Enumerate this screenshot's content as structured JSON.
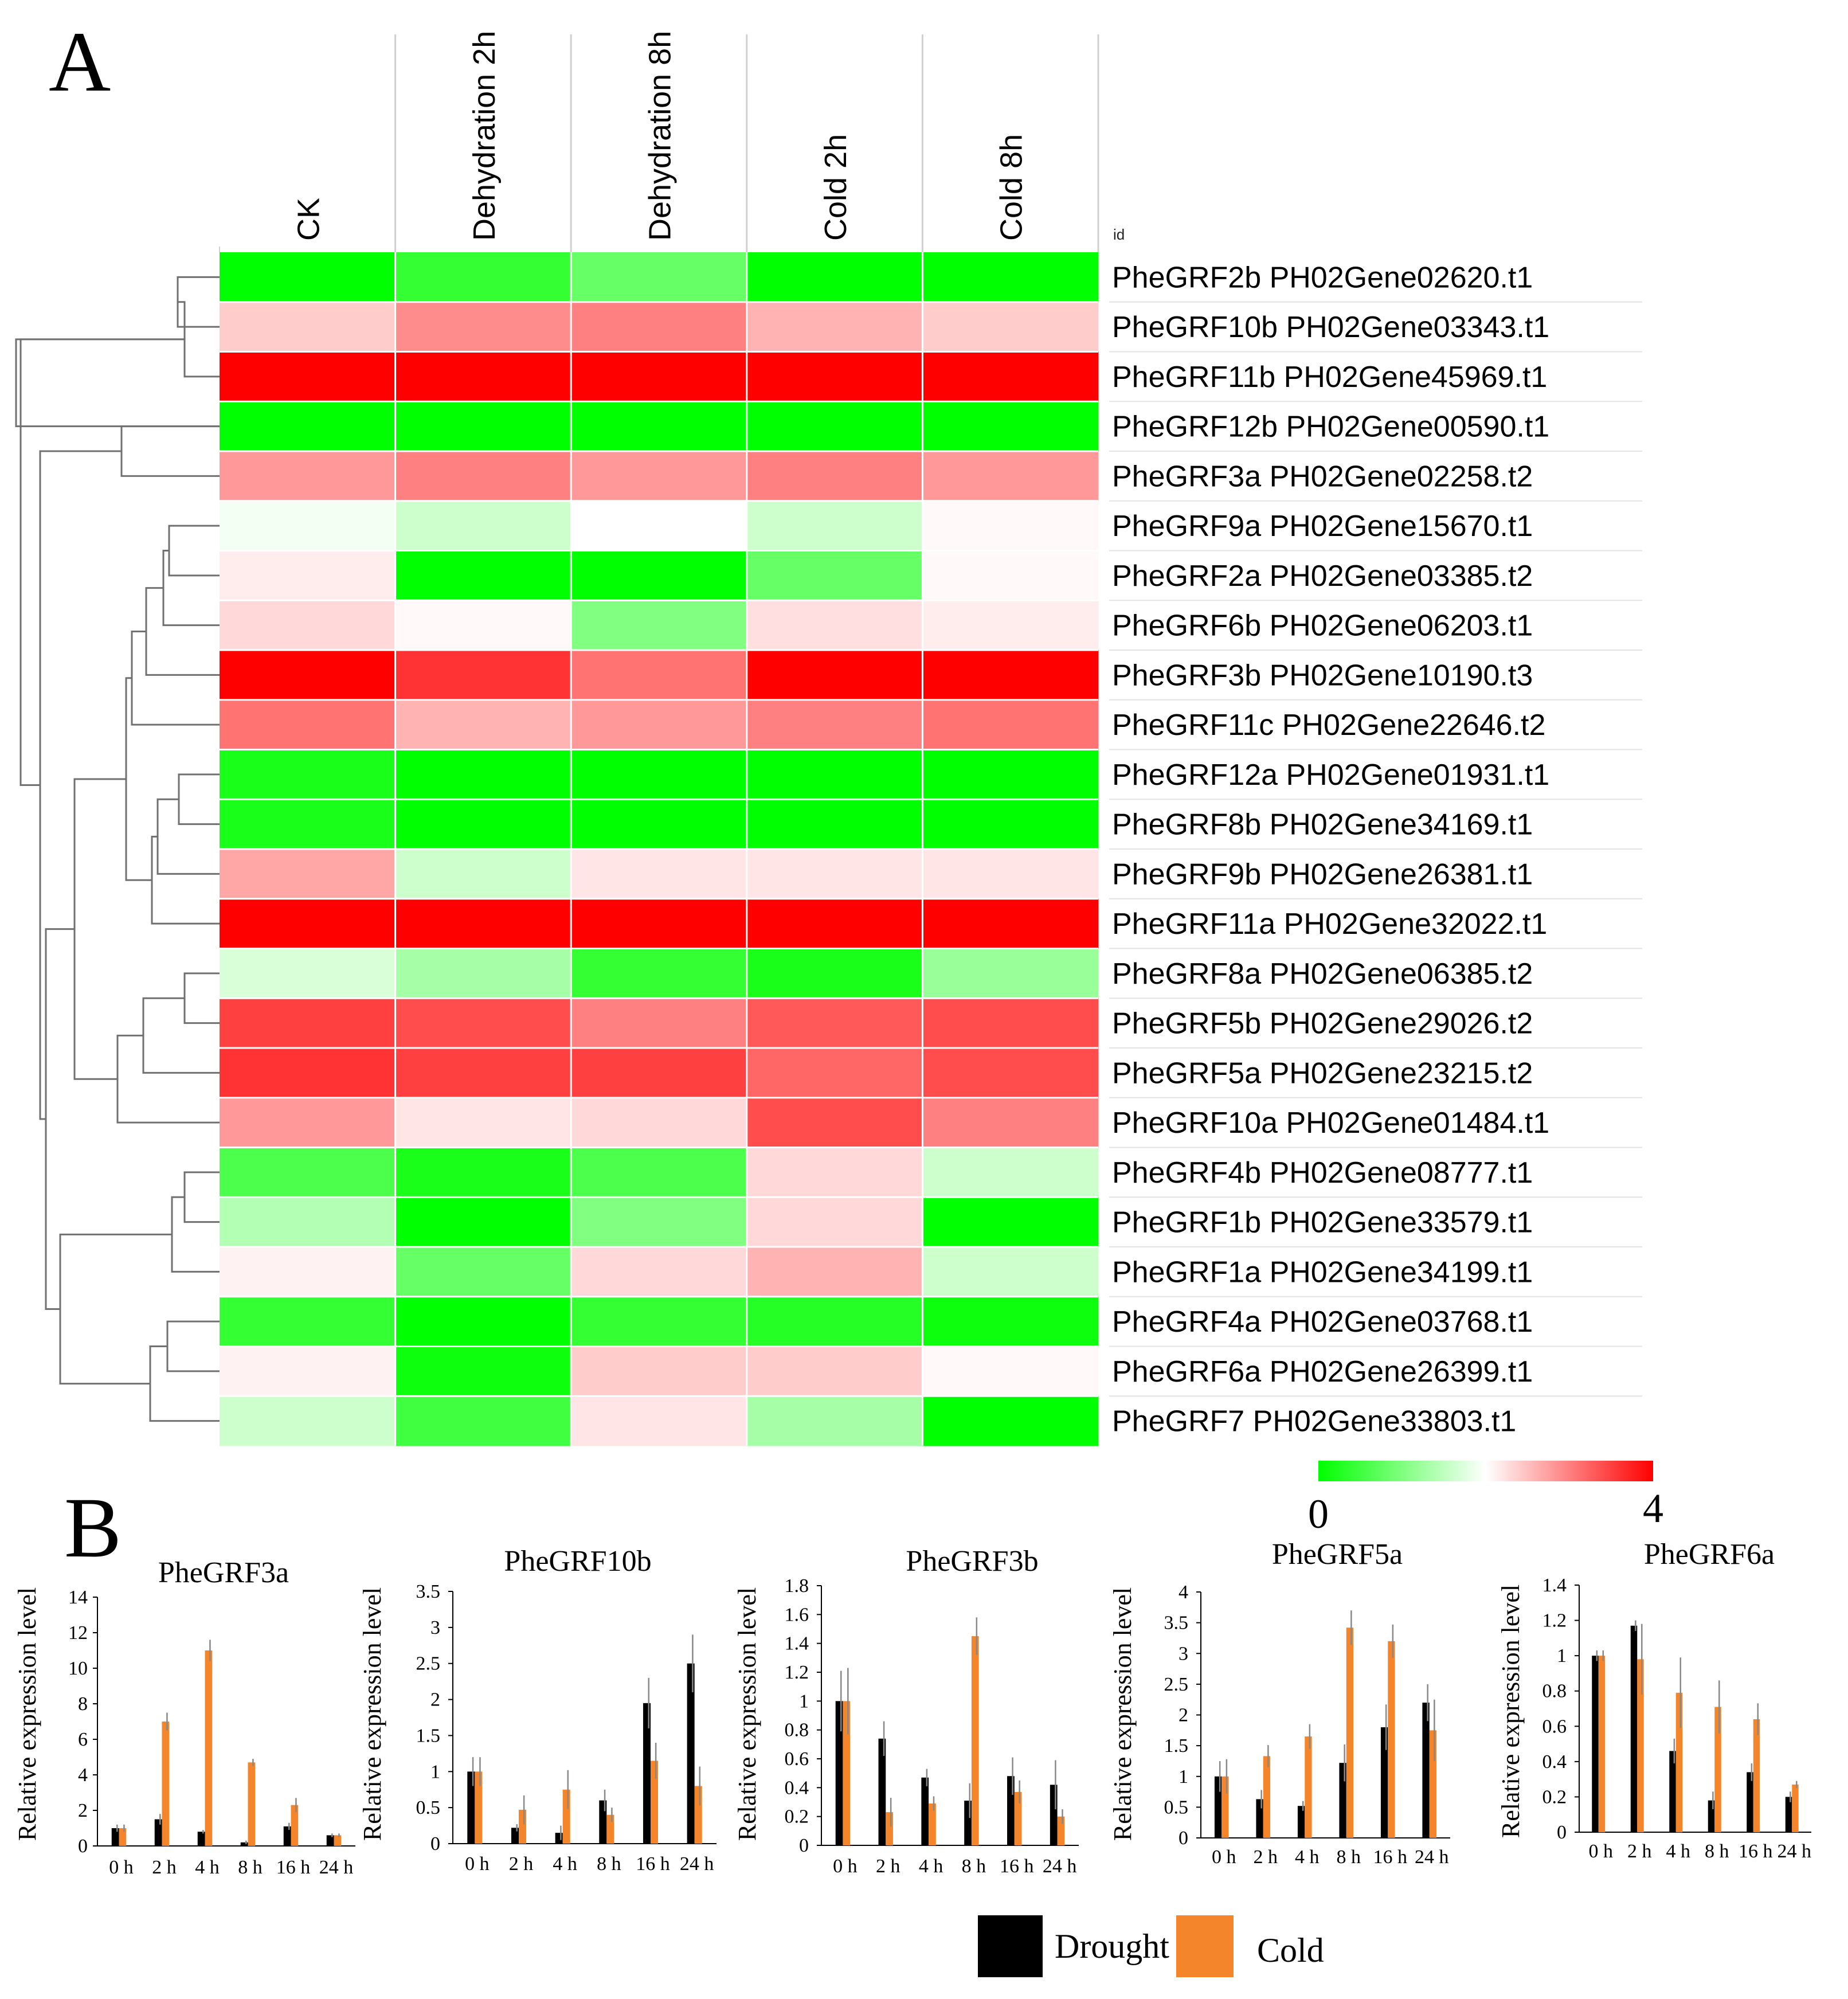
{
  "panel_labels": {
    "a": "A",
    "b": "B"
  },
  "chart_data": [
    {
      "type": "heatmap",
      "panel": "A",
      "columns": [
        "CK",
        "Dehydration 2h",
        "Dehydration 8h",
        "Cold 2h",
        "Cold 8h"
      ],
      "row_header": "id",
      "rows": [
        "PheGRF2b PH02Gene02620.t1",
        "PheGRF10b PH02Gene03343.t1",
        "PheGRF11b PH02Gene45969.t1",
        "PheGRF12b PH02Gene00590.t1",
        "PheGRF3a PH02Gene02258.t2",
        "PheGRF9a PH02Gene15670.t1",
        "PheGRF2a PH02Gene03385.t2",
        "PheGRF6b PH02Gene06203.t1",
        "PheGRF3b PH02Gene10190.t3",
        "PheGRF11c PH02Gene22646.t2",
        "PheGRF12a PH02Gene01931.t1",
        "PheGRF8b PH02Gene34169.t1",
        "PheGRF9b PH02Gene26381.t1",
        "PheGRF11a PH02Gene32022.t1",
        "PheGRF8a PH02Gene06385.t2",
        "PheGRF5b PH02Gene29026.t2",
        "PheGRF5a PH02Gene23215.t2",
        "PheGRF10a PH02Gene01484.t1",
        "PheGRF4b PH02Gene08777.t1",
        "PheGRF1b PH02Gene33579.t1",
        "PheGRF1a PH02Gene34199.t1",
        "PheGRF4a PH02Gene03768.t1",
        "PheGRF6a PH02Gene26399.t1",
        "PheGRF7 PH02Gene33803.t1"
      ],
      "values": [
        [
          0.0,
          0.4,
          0.8,
          0.0,
          0.0
        ],
        [
          2.4,
          2.9,
          3.0,
          2.6,
          2.4
        ],
        [
          4.0,
          4.0,
          4.0,
          4.0,
          4.0
        ],
        [
          0.0,
          0.0,
          0.0,
          0.0,
          0.0
        ],
        [
          2.8,
          3.0,
          2.8,
          3.0,
          2.8
        ],
        [
          1.9,
          1.6,
          2.0,
          1.6,
          2.05
        ],
        [
          2.15,
          0.0,
          0.0,
          0.8,
          2.05
        ],
        [
          2.3,
          2.05,
          1.0,
          2.25,
          2.15
        ],
        [
          4.0,
          3.6,
          3.1,
          4.0,
          4.0
        ],
        [
          3.1,
          2.6,
          2.8,
          3.0,
          3.1
        ],
        [
          0.2,
          0.0,
          0.0,
          0.0,
          0.0
        ],
        [
          0.2,
          0.0,
          0.0,
          0.0,
          0.0
        ],
        [
          2.7,
          1.6,
          2.2,
          2.2,
          2.2
        ],
        [
          4.0,
          4.0,
          4.0,
          4.0,
          4.0
        ],
        [
          1.7,
          1.3,
          0.4,
          0.2,
          1.2
        ],
        [
          3.5,
          3.4,
          3.0,
          3.3,
          3.4
        ],
        [
          3.6,
          3.5,
          3.5,
          3.2,
          3.4
        ],
        [
          2.8,
          2.2,
          2.3,
          3.4,
          3.0
        ],
        [
          0.6,
          0.2,
          0.6,
          2.3,
          1.6
        ],
        [
          1.4,
          0.0,
          1.0,
          2.3,
          0.0
        ],
        [
          2.1,
          0.8,
          2.3,
          2.6,
          1.6
        ],
        [
          0.4,
          0.0,
          0.4,
          0.3,
          0.1
        ],
        [
          2.1,
          0.1,
          2.4,
          2.4,
          2.05
        ],
        [
          1.6,
          0.5,
          2.2,
          1.3,
          0.0
        ]
      ],
      "color_scale": {
        "min": 0,
        "max": 4,
        "low_color": "#00ff00",
        "mid_color": "#ffffff",
        "high_color": "#ff0000",
        "min_label": "0",
        "max_label": "4"
      }
    },
    {
      "type": "bar",
      "panel": "B",
      "title": "PheGRF3a",
      "ylabel": "Relative expression level",
      "categories": [
        "0 h",
        "2 h",
        "4 h",
        "8 h",
        "16 h",
        "24 h"
      ],
      "ylim": [
        0,
        14
      ],
      "yticks": [
        "0",
        "2",
        "4",
        "6",
        "8",
        "10",
        "12",
        "14"
      ],
      "series": [
        {
          "name": "Drought",
          "values": [
            1.0,
            1.5,
            0.8,
            0.2,
            1.1,
            0.6
          ],
          "errors": [
            0.2,
            0.3,
            0.1,
            0.1,
            0.2,
            0.1
          ]
        },
        {
          "name": "Cold",
          "values": [
            1.0,
            7.0,
            11.0,
            4.7,
            2.3,
            0.6
          ],
          "errors": [
            0.2,
            0.5,
            0.6,
            0.2,
            0.4,
            0.1
          ]
        }
      ]
    },
    {
      "type": "bar",
      "panel": "B",
      "title": "PheGRF10b",
      "ylabel": "Relative expression level",
      "categories": [
        "0 h",
        "2 h",
        "4 h",
        "8 h",
        "16 h",
        "24 h"
      ],
      "ylim": [
        0,
        3.5
      ],
      "yticks": [
        "0",
        "0.5",
        "1",
        "1.5",
        "2",
        "2.5",
        "3",
        "3.5"
      ],
      "series": [
        {
          "name": "Drought",
          "values": [
            1.0,
            0.22,
            0.15,
            0.6,
            1.95,
            2.5
          ],
          "errors": [
            0.2,
            0.05,
            0.1,
            0.15,
            0.35,
            0.4
          ]
        },
        {
          "name": "Cold",
          "values": [
            1.0,
            0.47,
            0.75,
            0.4,
            1.15,
            0.8
          ],
          "errors": [
            0.2,
            0.2,
            0.27,
            0.1,
            0.25,
            0.27
          ]
        }
      ]
    },
    {
      "type": "bar",
      "panel": "B",
      "title": "PheGRF3b",
      "ylabel": "Relative expression level",
      "categories": [
        "0 h",
        "2 h",
        "4 h",
        "8 h",
        "16 h",
        "24 h"
      ],
      "ylim": [
        0,
        1.8
      ],
      "yticks": [
        "0",
        "0.2",
        "0.4",
        "0.6",
        "0.8",
        "1",
        "1.2",
        "1.4",
        "1.6",
        "1.8"
      ],
      "series": [
        {
          "name": "Drought",
          "values": [
            1.0,
            0.74,
            0.47,
            0.31,
            0.48,
            0.42
          ],
          "errors": [
            0.21,
            0.12,
            0.06,
            0.12,
            0.13,
            0.17
          ]
        },
        {
          "name": "Cold",
          "values": [
            1.0,
            0.23,
            0.29,
            1.45,
            0.37,
            0.2
          ],
          "errors": [
            0.23,
            0.1,
            0.05,
            0.13,
            0.08,
            0.05
          ]
        }
      ]
    },
    {
      "type": "bar",
      "panel": "B",
      "title": "PheGRF5a",
      "ylabel": "Relative expression level",
      "categories": [
        "0 h",
        "2 h",
        "4 h",
        "8 h",
        "16 h",
        "24 h"
      ],
      "ylim": [
        0,
        4
      ],
      "yticks": [
        "0",
        "0.5",
        "1",
        "1.5",
        "2",
        "2.5",
        "3",
        "3.5",
        "4"
      ],
      "series": [
        {
          "name": "Drought",
          "values": [
            1.0,
            0.63,
            0.52,
            1.22,
            1.8,
            2.2
          ],
          "errors": [
            0.25,
            0.15,
            0.08,
            0.3,
            0.37,
            0.3
          ]
        },
        {
          "name": "Cold",
          "values": [
            1.0,
            1.33,
            1.65,
            3.42,
            3.2,
            1.75
          ],
          "errors": [
            0.28,
            0.18,
            0.2,
            0.28,
            0.27,
            0.5
          ]
        }
      ]
    },
    {
      "type": "bar",
      "panel": "B",
      "title": "PheGRF6a",
      "ylabel": "Relative expression level",
      "categories": [
        "0 h",
        "2 h",
        "4 h",
        "8 h",
        "16 h",
        "24 h"
      ],
      "ylim": [
        0,
        1.4
      ],
      "yticks": [
        "0",
        "0.2",
        "0.4",
        "0.6",
        "0.8",
        "1",
        "1.2",
        "1.4"
      ],
      "series": [
        {
          "name": "Drought",
          "values": [
            1.0,
            1.17,
            0.46,
            0.18,
            0.34,
            0.2
          ],
          "errors": [
            0.03,
            0.03,
            0.07,
            0.05,
            0.05,
            0.03
          ]
        },
        {
          "name": "Cold",
          "values": [
            1.0,
            0.98,
            0.79,
            0.71,
            0.64,
            0.27
          ],
          "errors": [
            0.03,
            0.2,
            0.2,
            0.15,
            0.09,
            0.02
          ]
        }
      ]
    }
  ],
  "legend": {
    "items": [
      {
        "label": "Drought",
        "color": "#000000"
      },
      {
        "label": "Cold",
        "color": "#f5852a"
      }
    ]
  }
}
